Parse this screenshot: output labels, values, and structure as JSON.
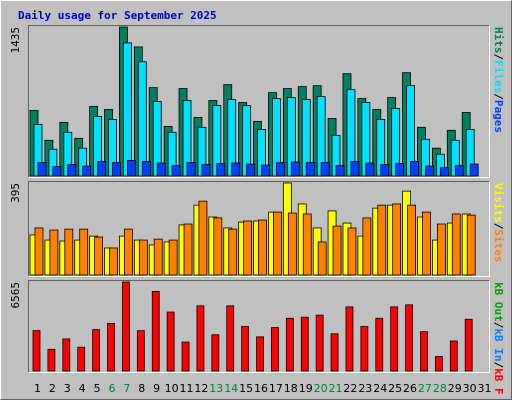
{
  "title": "Daily usage for September 2025",
  "separator": "/",
  "weekends": [
    "6",
    "7",
    "13",
    "14",
    "20",
    "21",
    "27",
    "28"
  ],
  "weekend_color": "#008040",
  "chart_data": [
    {
      "type": "bar",
      "ylim": [
        0,
        1435
      ],
      "yticks": [
        1435
      ],
      "series": [
        {
          "name": "Hits",
          "color": "#008060",
          "values": [
            631,
            344,
            517,
            363,
            670,
            641,
            1435,
            1243,
            851,
            478,
            842,
            564,
            727,
            880,
            708,
            526,
            803,
            842,
            861,
            870,
            555,
            985,
            746,
            641,
            755,
            995,
            469,
            268,
            440,
            612,
            0
          ]
        },
        {
          "name": "Files",
          "color": "#00e0ff",
          "values": [
            497,
            258,
            421,
            268,
            574,
            545,
            1282,
            1100,
            717,
            421,
            727,
            469,
            679,
            736,
            679,
            449,
            746,
            755,
            736,
            765,
            392,
            832,
            708,
            545,
            650,
            870,
            354,
            210,
            344,
            449,
            0
          ]
        },
        {
          "name": "Pages",
          "color": "#0040ff",
          "values": [
            130,
            90,
            110,
            95,
            140,
            130,
            150,
            140,
            125,
            100,
            130,
            110,
            120,
            125,
            115,
            105,
            130,
            135,
            130,
            130,
            100,
            140,
            125,
            110,
            120,
            140,
            95,
            80,
            100,
            115,
            0
          ]
        }
      ]
    },
    {
      "type": "bar",
      "ylim": [
        0,
        395
      ],
      "yticks": [
        395
      ],
      "series": [
        {
          "name": "Visits",
          "color": "#ffff00",
          "values": [
            172,
            150,
            146,
            150,
            167,
            116,
            167,
            150,
            129,
            142,
            215,
            300,
            249,
            202,
            227,
            232,
            270,
            395,
            305,
            202,
            275,
            223,
            167,
            287,
            300,
            360,
            249,
            150,
            223,
            262,
            0
          ]
        },
        {
          "name": "Sites",
          "color": "#ff8000",
          "values": [
            202,
            193,
            197,
            197,
            163,
            116,
            197,
            150,
            154,
            150,
            219,
            317,
            245,
            197,
            232,
            236,
            270,
            266,
            262,
            142,
            210,
            202,
            245,
            300,
            305,
            300,
            270,
            219,
            262,
            257,
            0
          ]
        }
      ]
    },
    {
      "type": "bar",
      "ylim": [
        0,
        6565
      ],
      "yticks": [
        6565
      ],
      "categories": [
        "1",
        "2",
        "3",
        "4",
        "5",
        "6",
        "7",
        "8",
        "9",
        "10",
        "11",
        "12",
        "13",
        "14",
        "15",
        "16",
        "17",
        "18",
        "19",
        "20",
        "21",
        "22",
        "23",
        "24",
        "25",
        "26",
        "27",
        "28",
        "29",
        "30",
        "31"
      ],
      "series": [
        {
          "name": "kB F",
          "color": "#ff0000",
          "values": [
            2976,
            1602,
            2365,
            1755,
            3052,
            3510,
            6565,
            2976,
            5875,
            4349,
            2136,
            4807,
            2671,
            4807,
            3281,
            2518,
            3205,
            3891,
            3968,
            4120,
            2747,
            4731,
            3281,
            3891,
            4731,
            4883,
            2900,
            1068,
            2213,
            3815,
            0
          ]
        }
      ],
      "other_legend_entries": [
        {
          "name": "kB In",
          "color": "#0080ff"
        },
        {
          "name": "kB Out",
          "color": "#00a000"
        }
      ]
    }
  ]
}
